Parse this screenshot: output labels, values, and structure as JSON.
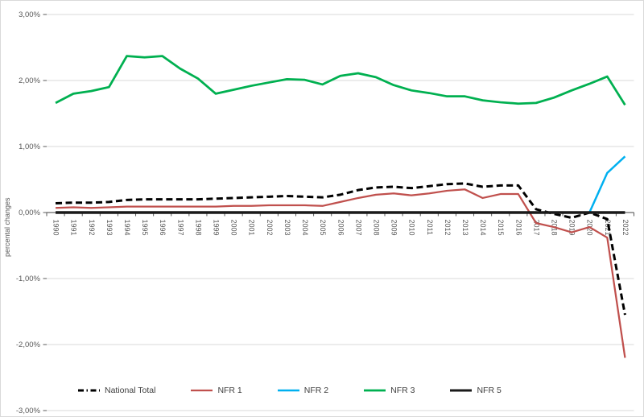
{
  "chart_data": {
    "type": "line",
    "title": "",
    "xlabel": "",
    "ylabel": "percental changes",
    "x": [
      1990,
      1991,
      1992,
      1993,
      1994,
      1995,
      1996,
      1997,
      1998,
      1999,
      2000,
      2001,
      2002,
      2003,
      2004,
      2005,
      2006,
      2007,
      2008,
      2009,
      2010,
      2011,
      2012,
      2013,
      2014,
      2015,
      2016,
      2017,
      2018,
      2019,
      2020,
      2021,
      2022
    ],
    "y_tick_labels": [
      "3,00%",
      "2,00%",
      "1,00%",
      "0,00%",
      "-1,00%",
      "-2,00%",
      "-3,00%"
    ],
    "y_tick_values": [
      3,
      2,
      1,
      0,
      -1,
      -2,
      -3
    ],
    "ylim": [
      -3,
      3
    ],
    "grid": true,
    "legend_position": "bottom",
    "series": [
      {
        "name": "National Total",
        "color": "#000000",
        "dash": "dashed",
        "width": 3,
        "values": [
          0.14,
          0.15,
          0.15,
          0.16,
          0.19,
          0.2,
          0.2,
          0.2,
          0.2,
          0.21,
          0.22,
          0.23,
          0.24,
          0.25,
          0.24,
          0.23,
          0.27,
          0.34,
          0.38,
          0.39,
          0.37,
          0.4,
          0.43,
          0.44,
          0.39,
          0.41,
          0.41,
          0.05,
          -0.02,
          -0.08,
          0.0,
          -0.1,
          -1.55
        ]
      },
      {
        "name": "NFR 1",
        "color": "#c0504d",
        "dash": "solid",
        "width": 2.25,
        "values": [
          0.07,
          0.08,
          0.07,
          0.08,
          0.09,
          0.09,
          0.09,
          0.09,
          0.09,
          0.09,
          0.1,
          0.1,
          0.11,
          0.11,
          0.11,
          0.1,
          0.16,
          0.22,
          0.27,
          0.29,
          0.26,
          0.29,
          0.33,
          0.35,
          0.22,
          0.28,
          0.28,
          -0.16,
          -0.22,
          -0.3,
          -0.22,
          -0.38,
          -2.2
        ]
      },
      {
        "name": "NFR 2",
        "color": "#00b0f0",
        "dash": "solid",
        "width": 2.5,
        "values": [
          null,
          null,
          null,
          null,
          null,
          null,
          null,
          null,
          null,
          null,
          null,
          null,
          null,
          null,
          null,
          null,
          null,
          null,
          null,
          null,
          null,
          null,
          null,
          null,
          null,
          null,
          null,
          null,
          null,
          null,
          0.0,
          0.6,
          0.85
        ]
      },
      {
        "name": "NFR 3",
        "color": "#00b050",
        "dash": "solid",
        "width": 2.75,
        "values": [
          1.66,
          1.8,
          1.84,
          1.9,
          2.37,
          2.35,
          2.37,
          2.18,
          2.03,
          1.8,
          1.86,
          1.92,
          1.97,
          2.02,
          2.01,
          1.94,
          2.07,
          2.11,
          2.05,
          1.93,
          1.85,
          1.81,
          1.76,
          1.76,
          1.7,
          1.67,
          1.65,
          1.66,
          1.74,
          1.85,
          1.95,
          2.06,
          1.63
        ]
      },
      {
        "name": "NFR 5",
        "color": "#1a1a1a",
        "dash": "solid",
        "width": 3.5,
        "values": [
          0,
          0,
          0,
          0,
          0,
          0,
          0,
          0,
          0,
          0,
          0,
          0,
          0,
          0,
          0,
          0,
          0,
          0,
          0,
          0,
          0,
          0,
          0,
          0,
          0,
          0,
          0,
          0,
          0,
          0,
          0,
          0,
          0
        ]
      }
    ]
  },
  "colors": {
    "gridline": "#d9d9d9",
    "axis": "#595959",
    "tick_label": "#595959",
    "legend_text": "#404040",
    "chart_border": "#d9d9d9",
    "background": "#ffffff"
  }
}
